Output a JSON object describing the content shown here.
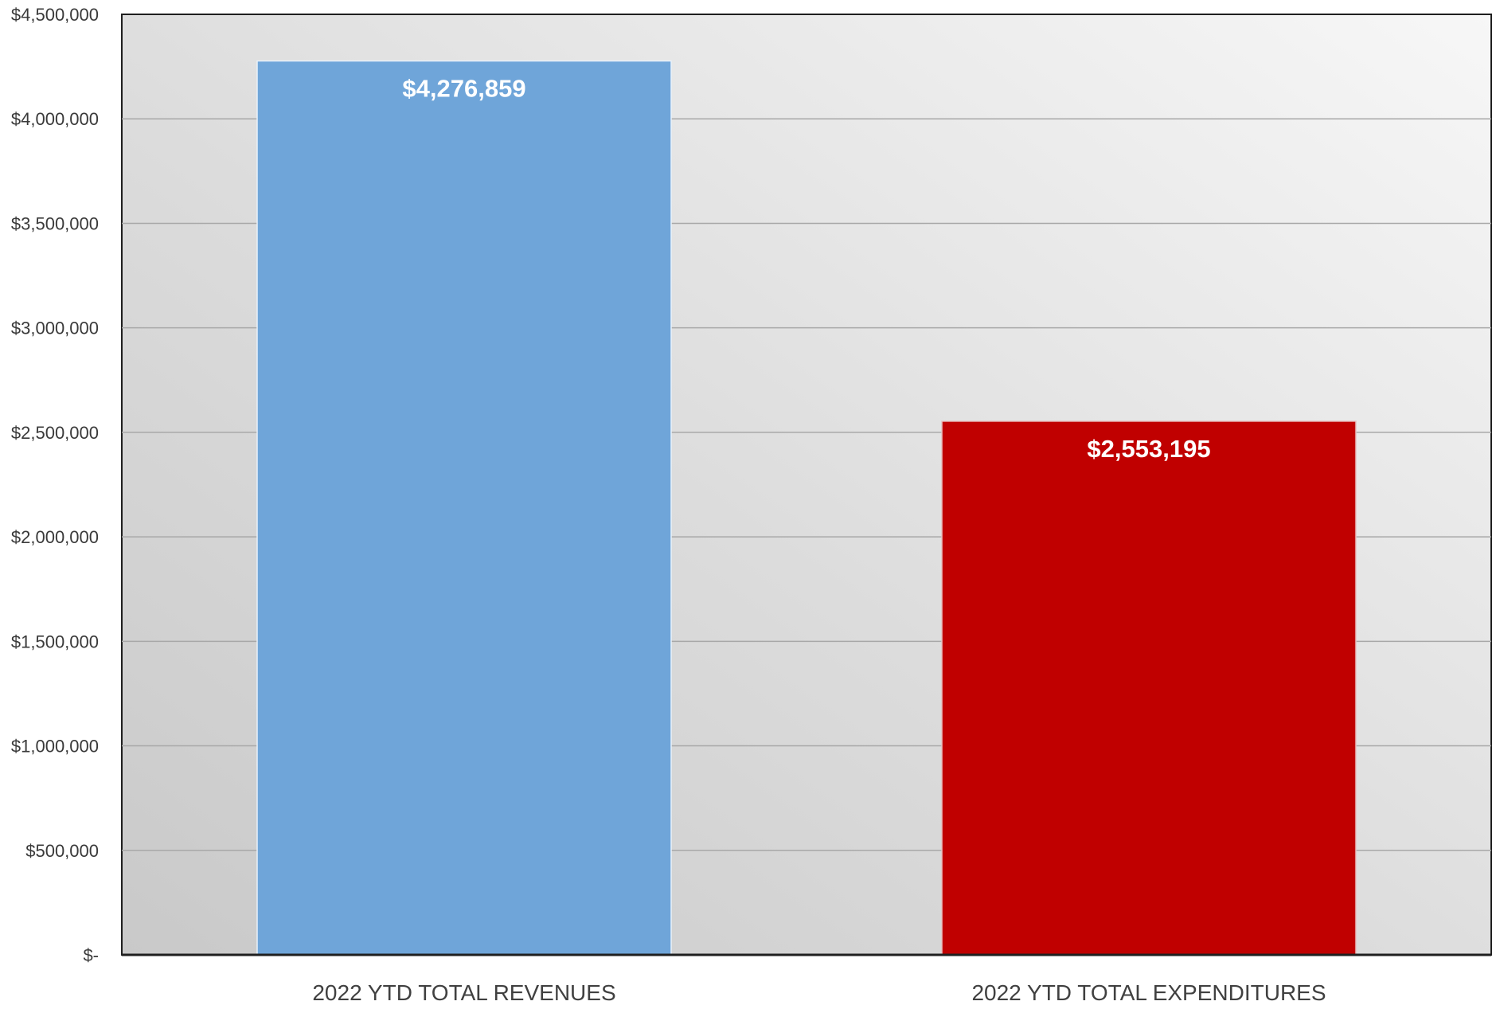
{
  "chart_data": {
    "type": "bar",
    "categories": [
      "2022 YTD TOTAL REVENUES",
      "2022 YTD TOTAL EXPENDITURES"
    ],
    "values": [
      4276859,
      2553195
    ],
    "data_labels": [
      "$4,276,859",
      "$2,553,195"
    ],
    "ylim": [
      0,
      4500000
    ],
    "yticks": [
      0,
      500000,
      1000000,
      1500000,
      2000000,
      2500000,
      3000000,
      3500000,
      4000000,
      4500000
    ],
    "ytick_labels": [
      "$-",
      "$500,000",
      "$1,000,000",
      "$1,500,000",
      "$2,000,000",
      "$2,500,000",
      "$3,000,000",
      "$3,500,000",
      "$4,000,000",
      "$4,500,000"
    ],
    "colors": [
      "#6FA5D9",
      "#C00000"
    ],
    "grid": true,
    "legend": "none"
  }
}
